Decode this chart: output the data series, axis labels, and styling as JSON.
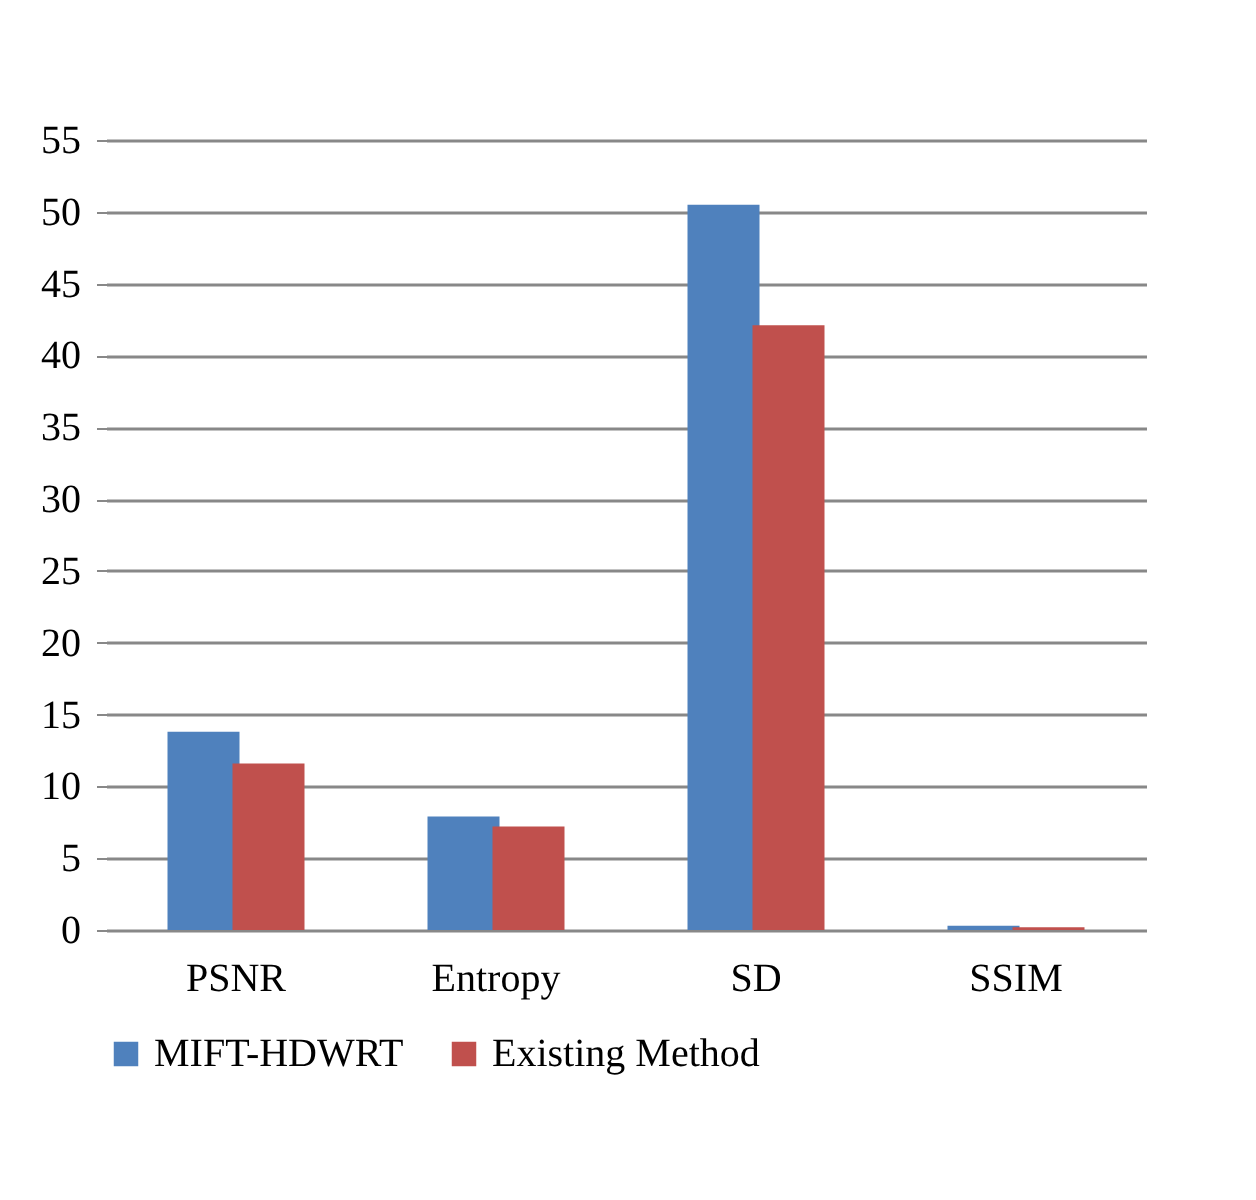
{
  "chart_data": {
    "type": "bar",
    "categories": [
      "PSNR",
      "Entropy",
      "SD",
      "SSIM"
    ],
    "series": [
      {
        "name": "MIFT-HDWRT",
        "color": "#4f81bd",
        "values": [
          13.8,
          7.9,
          50.5,
          0.3
        ]
      },
      {
        "name": "Existing Method",
        "color": "#c0504d",
        "values": [
          11.6,
          7.2,
          42.1,
          0.2
        ]
      }
    ],
    "ylim": [
      0,
      55
    ],
    "yticks": [
      0,
      5,
      10,
      15,
      20,
      25,
      30,
      35,
      40,
      45,
      50,
      55
    ],
    "grid": "y",
    "legend": "bottom"
  }
}
